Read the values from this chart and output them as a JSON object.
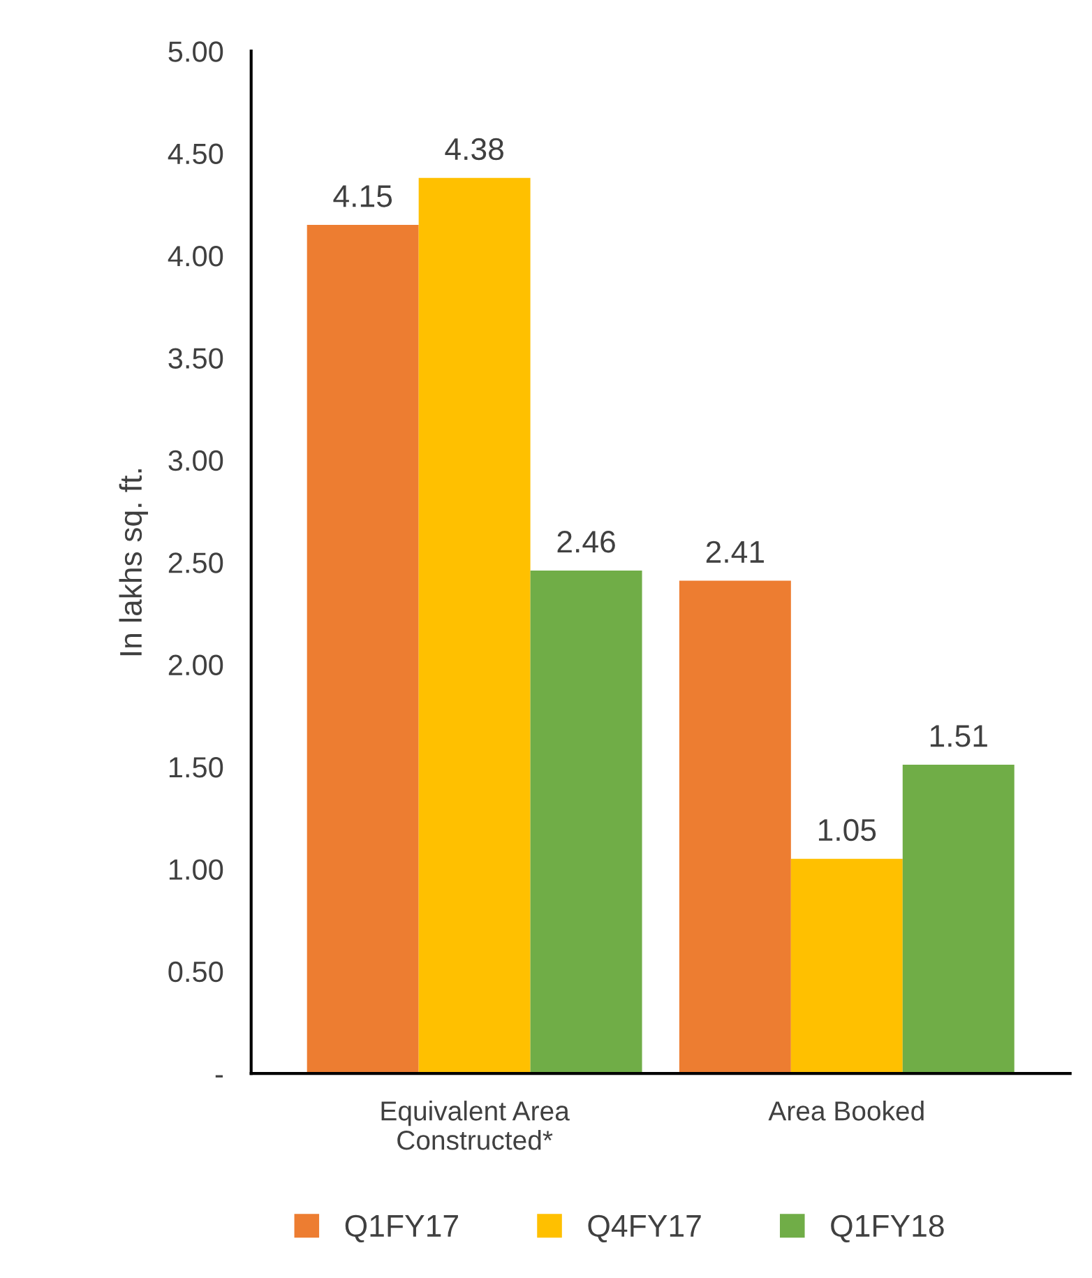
{
  "chart_data": {
    "type": "bar",
    "ylabel": "In lakhs sq. ft.",
    "categories": [
      "Equivalent Area\nConstructed*",
      "Area Booked"
    ],
    "series": [
      {
        "name": "Q1FY17",
        "color": "#ed7d31",
        "values": [
          4.15,
          2.41
        ]
      },
      {
        "name": "Q4FY17",
        "color": "#ffc000",
        "values": [
          4.38,
          1.05
        ]
      },
      {
        "name": "Q1FY18",
        "color": "#70ad47",
        "values": [
          2.46,
          1.51
        ]
      }
    ],
    "ylim": [
      0,
      5
    ],
    "yticks": [
      {
        "value": 0,
        "label": "-"
      },
      {
        "value": 0.5,
        "label": "0.50"
      },
      {
        "value": 1,
        "label": "1.00"
      },
      {
        "value": 1.5,
        "label": "1.50"
      },
      {
        "value": 2,
        "label": "2.00"
      },
      {
        "value": 2.5,
        "label": "2.50"
      },
      {
        "value": 3,
        "label": "3.00"
      },
      {
        "value": 3.5,
        "label": "3.50"
      },
      {
        "value": 4,
        "label": "4.00"
      },
      {
        "value": 4.5,
        "label": "4.50"
      },
      {
        "value": 5,
        "label": "5.00"
      }
    ],
    "data_labels": true,
    "grid": false,
    "legend": "bottom"
  }
}
